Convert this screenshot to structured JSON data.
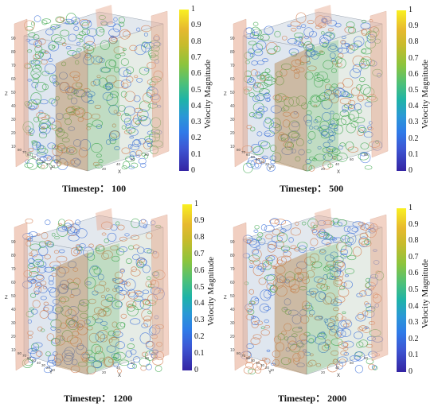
{
  "figure": {
    "panels": [
      {
        "timestep": "Timestep： 100"
      },
      {
        "timestep": "Timestep： 500"
      },
      {
        "timestep": "Timestep： 1200"
      },
      {
        "timestep": "Timestep： 2000"
      }
    ],
    "colorbar": {
      "title": "Velocity Magnitude",
      "ticks": [
        "1",
        "0.9",
        "0.8",
        "0.7",
        "0.6",
        "0.5",
        "0.4",
        "0.3",
        "0.2",
        "0.1",
        "0"
      ]
    },
    "axes": {
      "x": "X",
      "y": "Y",
      "z": "Z"
    },
    "colors": {
      "blue": "#3b6fd8",
      "green": "#3aa64a",
      "orange": "#d0784a",
      "slab": "#e6a98f"
    }
  }
}
